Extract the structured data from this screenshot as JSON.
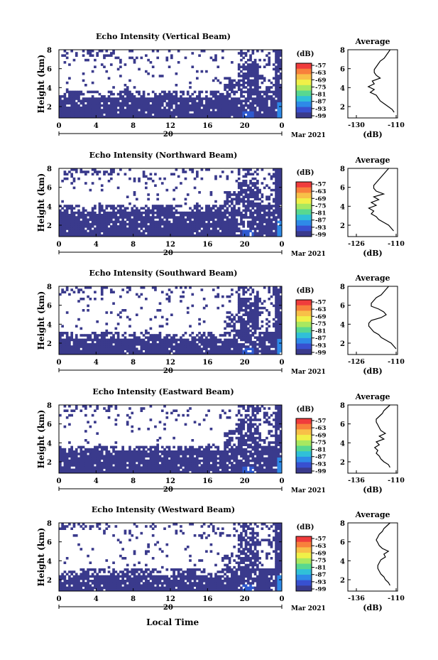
{
  "chart_data": {
    "type": "heatmap",
    "panels": [
      {
        "title": "Echo Intensity (Vertical Beam)",
        "avg_xticks": [
          "-130",
          "-110"
        ],
        "avg_profile": [
          -113,
          -114,
          -115,
          -116,
          -118,
          -119,
          -120,
          -121,
          -121,
          -120,
          -118,
          -122,
          -121,
          -124,
          -121,
          -123,
          -120,
          -119,
          -118,
          -116,
          -114,
          -112,
          -111
        ]
      },
      {
        "title": "Echo Intensity (Northward Beam)",
        "avg_xticks": [
          "-126",
          "-110"
        ],
        "avg_profile": [
          -113,
          -114,
          -115,
          -116,
          -117,
          -118,
          -119,
          -119,
          -118,
          -115,
          -119,
          -117,
          -120,
          -118,
          -121,
          -119,
          -120,
          -118,
          -117,
          -115,
          -113,
          -112,
          -111
        ]
      },
      {
        "title": "Echo Intensity (Southward Beam)",
        "avg_xticks": [
          "-126",
          "-110"
        ],
        "avg_profile": [
          -113,
          -114,
          -115,
          -116,
          -118,
          -119,
          -120,
          -120,
          -117,
          -115,
          -114,
          -116,
          -120,
          -121,
          -121,
          -120,
          -119,
          -117,
          -116,
          -114,
          -112,
          -111,
          -110
        ]
      },
      {
        "title": "Echo Intensity (Eastward Beam)",
        "avg_xticks": [
          "-136",
          "-110"
        ],
        "avg_profile": [
          -114,
          -116,
          -118,
          -119,
          -121,
          -123,
          -123,
          -122,
          -121,
          -120,
          -117,
          -121,
          -118,
          -123,
          -121,
          -124,
          -122,
          -123,
          -121,
          -120,
          -118,
          -115,
          -114
        ]
      },
      {
        "title": "Echo Intensity (Westward Beam)",
        "avg_xticks": [
          "-136",
          "-110"
        ],
        "avg_profile": [
          -114,
          -116,
          -118,
          -119,
          -121,
          -122,
          -123,
          -122,
          -121,
          -119,
          -115,
          -118,
          -117,
          -120,
          -121,
          -122,
          -122,
          -121,
          -120,
          -118,
          -117,
          -115,
          -114
        ]
      }
    ],
    "ylabel": "Height (km)",
    "yticks": [
      "2",
      "4",
      "6",
      "8"
    ],
    "ylim": [
      0.8,
      8.0
    ],
    "xlim": [
      0,
      24
    ],
    "xticks": [
      "0",
      "4",
      "8",
      "12",
      "16",
      "20",
      "0"
    ],
    "date_day": "20",
    "date_month": "Mar 2021",
    "xlabel": "Local Time",
    "colorbar_unit": "(dB)",
    "colorbar_ticks": [
      "-57",
      "-63",
      "-69",
      "-75",
      "-81",
      "-87",
      "-93",
      "-99"
    ],
    "colorbar_colors": [
      "#f03c3c",
      "#f8803c",
      "#f8c048",
      "#f0f048",
      "#a8e860",
      "#58d890",
      "#30c0d8",
      "#2e8ae8",
      "#3850d0",
      "#3a3a8c"
    ],
    "avg_title": "Average",
    "avg_yticks": [
      "2",
      "4",
      "6",
      "8"
    ],
    "avg_xlabel": "(dB)",
    "map_colors": {
      "strong": "#3a3a8c",
      "moderate": "#2e5ad0",
      "high": "#2e8ae8",
      "empty": "#ffffff"
    }
  }
}
